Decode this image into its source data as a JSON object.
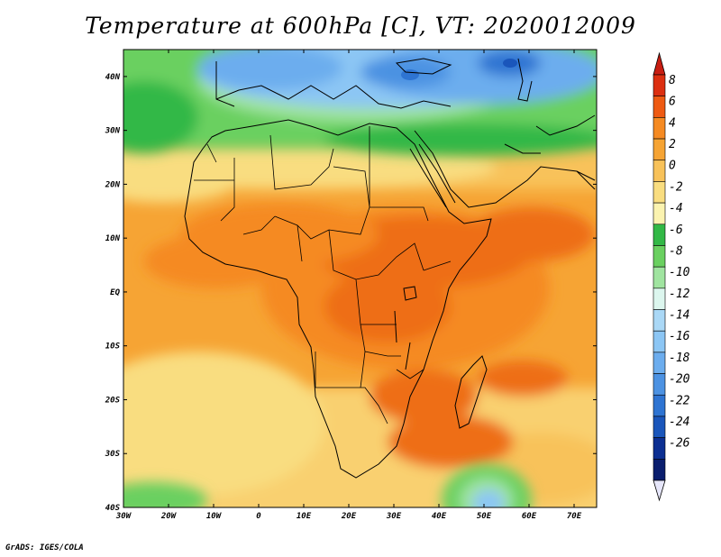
{
  "title": "Temperature at 600hPa [C], VT: 2020012009",
  "credit": "GrADS: IGES/COLA",
  "map": {
    "lon_range": [
      -30,
      75
    ],
    "lat_range": [
      -40,
      45
    ],
    "lon_ticks": [
      {
        "value": -30,
        "label": "30W"
      },
      {
        "value": -20,
        "label": "20W"
      },
      {
        "value": -10,
        "label": "10W"
      },
      {
        "value": 0,
        "label": "0"
      },
      {
        "value": 10,
        "label": "10E"
      },
      {
        "value": 20,
        "label": "20E"
      },
      {
        "value": 30,
        "label": "30E"
      },
      {
        "value": 40,
        "label": "40E"
      },
      {
        "value": 50,
        "label": "50E"
      },
      {
        "value": 60,
        "label": "60E"
      },
      {
        "value": 70,
        "label": "70E"
      }
    ],
    "lat_ticks": [
      {
        "value": 40,
        "label": "40N"
      },
      {
        "value": 30,
        "label": "30N"
      },
      {
        "value": 20,
        "label": "20N"
      },
      {
        "value": 10,
        "label": "10N"
      },
      {
        "value": 0,
        "label": "EQ"
      },
      {
        "value": -10,
        "label": "10S"
      },
      {
        "value": -20,
        "label": "20S"
      },
      {
        "value": -30,
        "label": "30S"
      },
      {
        "value": -40,
        "label": "40S"
      }
    ]
  },
  "colorbar": {
    "levels": [
      "8",
      "6",
      "4",
      "2",
      "0",
      "-2",
      "-4",
      "-6",
      "-8",
      "-10",
      "-12",
      "-14",
      "-16",
      "-18",
      "-20",
      "-22",
      "-24",
      "-26"
    ],
    "colors": [
      "#dc2f10",
      "#ee5a12",
      "#f58a22",
      "#f6a434",
      "#f8c25a",
      "#f9dd80",
      "#fbf3b0",
      "#32b846",
      "#6ad060",
      "#a0e4a0",
      "#dcf6ee",
      "#aad8f6",
      "#8cc6f4",
      "#6cadee",
      "#4c92e2",
      "#2e74d2",
      "#1a56bb",
      "#0c2f92",
      "#0a1e6e"
    ],
    "top_triangle_color": "#c81e12",
    "bottom_triangle_color": "#e6e6fa"
  }
}
